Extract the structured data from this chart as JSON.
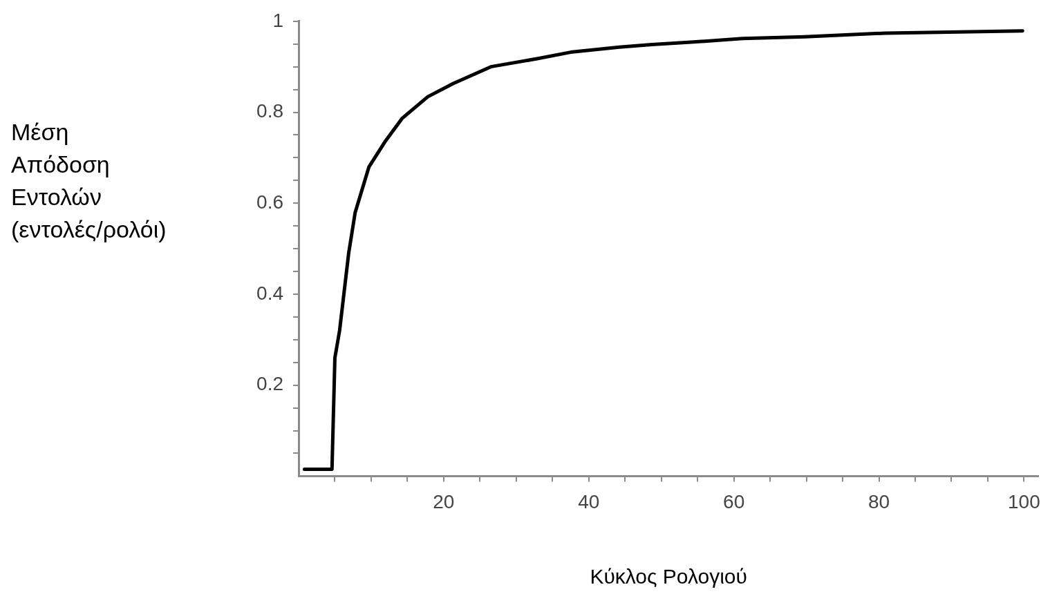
{
  "chart_data": {
    "type": "line",
    "xlabel": "Κύκλος Ρολογιού",
    "ylabel": "Μέση Απόδοση Εντολών (εντολές/ρολόι)",
    "xlim": [
      0,
      102
    ],
    "ylim": [
      0,
      1
    ],
    "xticks": [
      {
        "value": 5,
        "label": null
      },
      {
        "value": 10,
        "label": null
      },
      {
        "value": 15,
        "label": null
      },
      20,
      {
        "value": 25,
        "label": null
      },
      {
        "value": 30,
        "label": null
      },
      {
        "value": 35,
        "label": null
      },
      40,
      {
        "value": 45,
        "label": null
      },
      {
        "value": 50,
        "label": null
      },
      {
        "value": 55,
        "label": null
      },
      60,
      {
        "value": 65,
        "label": null
      },
      {
        "value": 70,
        "label": null
      },
      {
        "value": 75,
        "label": null
      },
      80,
      {
        "value": 85,
        "label": null
      },
      {
        "value": 90,
        "label": null
      },
      {
        "value": 95,
        "label": null
      },
      100
    ],
    "yticks": [
      {
        "value": 0.05,
        "label": null
      },
      {
        "value": 0.1,
        "label": null
      },
      {
        "value": 0.15,
        "label": null
      },
      0.2,
      {
        "value": 0.25,
        "label": null
      },
      {
        "value": 0.3,
        "label": null
      },
      {
        "value": 0.35,
        "label": null
      },
      0.4,
      {
        "value": 0.45,
        "label": null
      },
      {
        "value": 0.5,
        "label": null
      },
      {
        "value": 0.55,
        "label": null
      },
      0.6,
      {
        "value": 0.65,
        "label": null
      },
      {
        "value": 0.7,
        "label": null
      },
      {
        "value": 0.75,
        "label": null
      },
      0.8,
      {
        "value": 0.85,
        "label": null
      },
      {
        "value": 0.9,
        "label": null
      },
      {
        "value": 0.95,
        "label": null
      },
      1
    ],
    "grid": false,
    "legend": false,
    "marker": "none",
    "line_style": "solid",
    "series": [
      {
        "color": "#000000",
        "x": [
          0.8,
          4.6,
          5.0,
          5.65,
          6.9,
          7.8,
          9.7,
          11.9,
          14.3,
          17.8,
          21.3,
          26.5,
          33,
          37.5,
          44.2,
          48.7,
          54.1,
          61.2,
          69.8,
          81,
          99.8
        ],
        "values": [
          0.015,
          0.015,
          0.26,
          0.32,
          0.49,
          0.58,
          0.68,
          0.735,
          0.787,
          0.834,
          0.863,
          0.9,
          0.918,
          0.932,
          0.943,
          0.949,
          0.954,
          0.962,
          0.966,
          0.974,
          0.979
        ]
      }
    ]
  }
}
